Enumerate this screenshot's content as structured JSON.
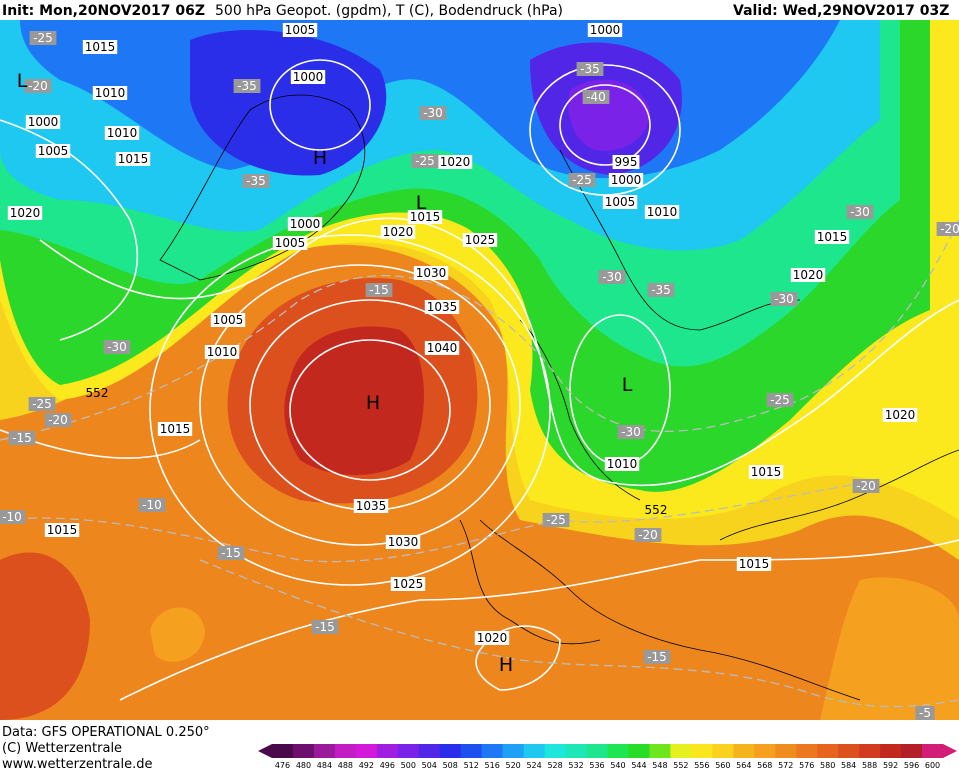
{
  "header": {
    "init": "Init: Mon,20NOV2017 06Z",
    "title": "500 hPa Geopot. (gpdm), T (C), Bodendruck (hPa)",
    "valid": "Valid: Wed,29NOV2017 03Z"
  },
  "footer": {
    "data": "Data: GFS OPERATIONAL 0.250°",
    "copyright": "(C) Wetterzentrale",
    "url": "www.wetterzentrale.de"
  },
  "map": {
    "pressure_labels": [
      "1005",
      "1015",
      "1000",
      "1010",
      "1000",
      "1010",
      "1005",
      "1015",
      "1020",
      "1020",
      "1015",
      "1000",
      "1020",
      "1005",
      "1025",
      "1030",
      "1035",
      "1005",
      "1010",
      "1040",
      "1015",
      "1035",
      "1015",
      "1030",
      "1025",
      "1020",
      "1000",
      "995",
      "1000",
      "1005",
      "1010",
      "1015",
      "1020",
      "1010",
      "1015",
      "1015",
      "1020"
    ],
    "temperature_labels": [
      "-25",
      "-20",
      "-35",
      "-30",
      "-35",
      "-40",
      "-25",
      "-35",
      "-25",
      "-30",
      "-20",
      "-30",
      "-35",
      "-15",
      "-30",
      "-30",
      "-25",
      "-20",
      "-15",
      "-25",
      "-30",
      "-10",
      "-10",
      "-20",
      "-25",
      "-20",
      "-15",
      "-15",
      "-15",
      "-5"
    ],
    "centers": [
      "L",
      "H",
      "L",
      "H",
      "L",
      "H"
    ],
    "height_labels": [
      "552",
      "552"
    ]
  },
  "colorbar": {
    "labels": [
      "476",
      "480",
      "484",
      "488",
      "492",
      "496",
      "500",
      "504",
      "508",
      "512",
      "516",
      "520",
      "524",
      "528",
      "532",
      "536",
      "540",
      "544",
      "548",
      "552",
      "556",
      "560",
      "564",
      "568",
      "572",
      "576",
      "580",
      "584",
      "588",
      "592",
      "596",
      "600"
    ],
    "colors": [
      "#4a0a4a",
      "#6e0f6e",
      "#9b1a9b",
      "#c21cc2",
      "#d31ad8",
      "#a01ee0",
      "#7a22e8",
      "#5226e6",
      "#2a2ee8",
      "#1e50f0",
      "#1e78f5",
      "#1ea0f5",
      "#1ec8f0",
      "#1ee6dc",
      "#1ee6b4",
      "#1ee68c",
      "#1ee650",
      "#28dc28",
      "#6ee61e",
      "#e6f01e",
      "#fae61e",
      "#fad21e",
      "#f5b41e",
      "#f5a01e",
      "#f08c1e",
      "#eb781e",
      "#e6641e",
      "#dc501e",
      "#d23c1e",
      "#c3281e",
      "#b41e28",
      "#d21e78"
    ]
  }
}
